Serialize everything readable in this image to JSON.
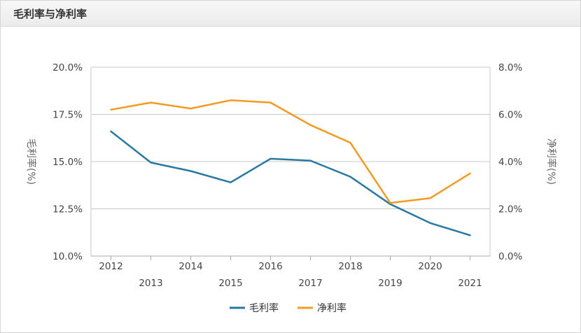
{
  "panel": {
    "title": "毛利率与净利率"
  },
  "chart_data": {
    "type": "line",
    "categories": [
      "2012",
      "2013",
      "2014",
      "2015",
      "2016",
      "2017",
      "2018",
      "2019",
      "2020",
      "2021"
    ],
    "series": [
      {
        "name": "毛利率",
        "axis": "left",
        "color": "#2878a0",
        "values": [
          16.6,
          14.95,
          14.5,
          13.9,
          15.15,
          15.05,
          14.2,
          12.75,
          11.75,
          11.1
        ]
      },
      {
        "name": "净利率",
        "axis": "right",
        "color": "#f39a22",
        "values": [
          6.2,
          6.5,
          6.25,
          6.6,
          6.5,
          5.55,
          4.8,
          2.25,
          2.45,
          3.5
        ]
      }
    ],
    "y_left": {
      "label": "毛利率(%)",
      "lim": [
        10,
        20
      ],
      "ticks": [
        "10.0%",
        "12.5%",
        "15.0%",
        "17.5%",
        "20.0%"
      ]
    },
    "y_right": {
      "label": "净利率(%)",
      "lim": [
        0,
        8
      ],
      "ticks": [
        "0.0%",
        "2.0%",
        "4.0%",
        "6.0%",
        "8.0%"
      ]
    },
    "grid": true,
    "legend": "bottom-center"
  }
}
